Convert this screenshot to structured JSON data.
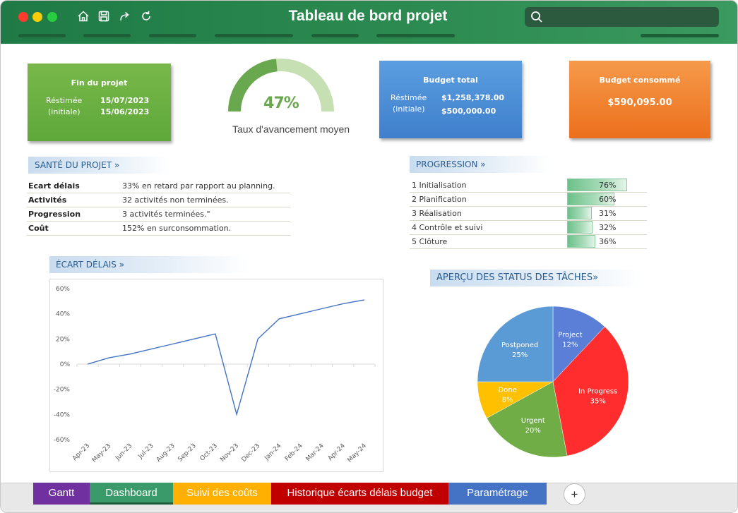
{
  "window": {
    "title": "Tableau de bord projet",
    "icons": [
      "home-icon",
      "save-icon",
      "share-icon",
      "refresh-icon",
      "search-icon"
    ],
    "search_placeholder": ""
  },
  "kpis": {
    "end": {
      "title": "Fin du projet",
      "estimated_label": "Réstimée",
      "estimated_value": "15/07/2023",
      "initial_label": "(initiale)",
      "initial_value": "15/06/2023",
      "color": "#5ea83a"
    },
    "progress": {
      "value_label": "47%",
      "value": 0.47,
      "label": "Taux d'avancement moyen",
      "color": "#6aa84f"
    },
    "budget": {
      "title": "Budget total",
      "estimated_label": "Réstimée",
      "estimated_value": "$1,258,378.00",
      "initial_label": "(initiale)",
      "initial_value": "$500,000.00",
      "color": "#3f7fcc"
    },
    "consumed": {
      "title": "Budget consommé",
      "value": "$590,095.00",
      "color": "#ec6f1c"
    }
  },
  "health": {
    "title": "SANTÉ DU PROJET »",
    "rows": [
      {
        "label": "Ecart délais",
        "value": "33% en retard par rapport au planning."
      },
      {
        "label": "Activités",
        "value": "32 activités non terminées."
      },
      {
        "label": "Progression",
        "value": "3 activités terminées.\""
      },
      {
        "label": "Coût",
        "value": "152% en surconsommation."
      }
    ]
  },
  "progression": {
    "title": "PROGRESSION »",
    "rows": [
      {
        "label": "1 Initialisation",
        "pct_label": "76%",
        "pct": 0.76
      },
      {
        "label": "2 Planification",
        "pct_label": "60%",
        "pct": 0.6
      },
      {
        "label": "3 Réalisation",
        "pct_label": "31%",
        "pct": 0.31
      },
      {
        "label": "4 Contrôle et suivi",
        "pct_label": "32%",
        "pct": 0.32
      },
      {
        "label": "5 Clôture",
        "pct_label": "36%",
        "pct": 0.36
      }
    ]
  },
  "delay_section": {
    "title": "ÉCART DÉLAIS »"
  },
  "status_section": {
    "title": "APERÇU DES STATUS DES TÂCHES»"
  },
  "chart_data": [
    {
      "type": "line",
      "title": "",
      "xlabel": "",
      "ylabel": "",
      "x": [
        "Apr-23",
        "May-23",
        "Jun-23",
        "Jul-23",
        "Aug-23",
        "Sep-23",
        "Oct-23",
        "Nov-23",
        "Dec-23",
        "Jan-24",
        "Feb-24",
        "Mar-24",
        "Apr-24",
        "May-24"
      ],
      "series": [
        {
          "values": [
            0,
            5,
            8,
            12,
            16,
            20,
            24,
            -40,
            20,
            36,
            40,
            44,
            48,
            51
          ],
          "color": "#4472c4"
        }
      ],
      "ylim": [
        -60,
        60
      ],
      "yticks": [
        "60%",
        "40%",
        "20%",
        "0%",
        "-20%",
        "-40%",
        "-60%"
      ],
      "grid": false
    },
    {
      "type": "pie",
      "title": "",
      "slices": [
        {
          "label": "Project",
          "value": 12,
          "pct_label": "12%",
          "color": "#5b7fd6"
        },
        {
          "label": "In Progress",
          "value": 35,
          "pct_label": "35%",
          "color": "#ff2d2d"
        },
        {
          "label": "Urgent",
          "value": 20,
          "pct_label": "20%",
          "color": "#70ad47"
        },
        {
          "label": "Done",
          "value": 8,
          "pct_label": "8%",
          "color": "#ffc000"
        },
        {
          "label": "Postponed",
          "value": 25,
          "pct_label": "25%",
          "color": "#5b9bd5"
        }
      ]
    }
  ],
  "tabs": [
    {
      "label": "Gantt",
      "color": "#7030a0"
    },
    {
      "label": "Dashboard",
      "color": "#3a9a6a"
    },
    {
      "label": "Suivi des coûts",
      "color": "#ffb000"
    },
    {
      "label": "Historique écarts délais budget",
      "color": "#c00000"
    },
    {
      "label": "Paramétrage",
      "color": "#4472c4"
    }
  ],
  "add_tab_label": "+"
}
